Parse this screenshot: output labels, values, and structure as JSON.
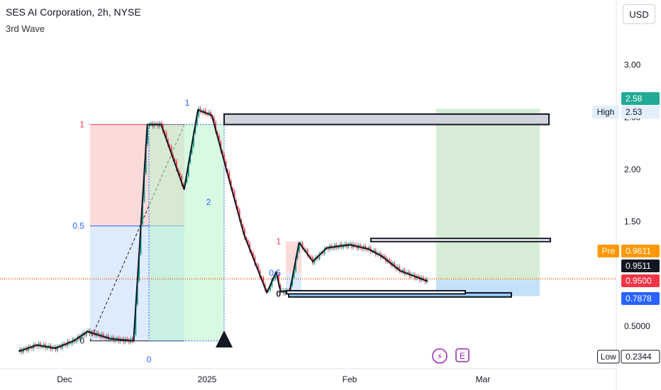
{
  "header": {
    "title": "SES AI Corporation, 2h, NYSE",
    "subtitle": "3rd Wave",
    "currency": "USD"
  },
  "chart_data": {
    "type": "line",
    "title": "SES AI Corporation, 2h, NYSE",
    "subtitle": "3rd Wave",
    "x_ticks": [
      "Dec",
      "2025",
      "Feb",
      "Mar"
    ],
    "y_ticks": [
      "3.00",
      "2.50",
      "2.00",
      "1.50",
      "0.5000"
    ],
    "series": [
      {
        "points": [
          [
            "Nov 21",
            0.26
          ],
          [
            "Nov 25",
            0.32
          ],
          [
            "Nov 29",
            0.29
          ],
          [
            "Dec 3",
            0.36
          ],
          [
            "Dec 6",
            0.45
          ],
          [
            "Dec 11",
            0.38
          ],
          [
            "Dec 16",
            0.36
          ],
          [
            "Dec 19",
            2.43
          ],
          [
            "Dec 22",
            2.43
          ],
          [
            "Dec 27",
            1.81
          ],
          [
            "Dec 30",
            2.57
          ],
          [
            "Jan 2",
            2.52
          ],
          [
            "Jan 9",
            1.38
          ],
          [
            "Jan 14",
            0.82
          ],
          [
            "Jan 16",
            1.02
          ],
          [
            "Jan 17",
            0.83
          ],
          [
            "Jan 19",
            0.84
          ],
          [
            "Jan 21",
            1.3
          ],
          [
            "Jan 24",
            1.12
          ],
          [
            "Jan 27",
            1.25
          ],
          [
            "Feb 1",
            1.28
          ],
          [
            "Feb 5",
            1.24
          ],
          [
            "Feb 8",
            1.17
          ],
          [
            "Feb 12",
            1.03
          ],
          [
            "Feb 18",
            0.93
          ]
        ]
      }
    ],
    "wave_labels": [
      "1",
      "2",
      "0"
    ],
    "fib_labels": {
      "left": [
        "1",
        "0.5",
        "0"
      ],
      "right": [
        "1",
        "0.5",
        "0"
      ]
    },
    "price_labels": [
      {
        "label": "",
        "value": "2.58",
        "color": "#22ab94"
      },
      {
        "label": "High",
        "value": "2.53",
        "color": "#e3effd"
      },
      {
        "label": "Pre",
        "value": "0.9611",
        "color": "#ff9800"
      },
      {
        "label": "",
        "value": "0.9511",
        "color": "#131722"
      },
      {
        "label": "",
        "value": "0.9500",
        "color": "#f23645"
      },
      {
        "label": "",
        "value": "0.7878",
        "color": "#2962ff"
      },
      {
        "label": "Low",
        "value": "0.2344",
        "color": "#ffffff"
      }
    ],
    "event_badges": [
      "⚡",
      "E"
    ],
    "grid": false,
    "colors": {
      "up": "#089981",
      "down": "#f23645",
      "wave_line": "#131722",
      "projection": "#4caf50",
      "fib_top": "#f8bbbb",
      "fib_bottom": "#c7ddfb"
    }
  }
}
